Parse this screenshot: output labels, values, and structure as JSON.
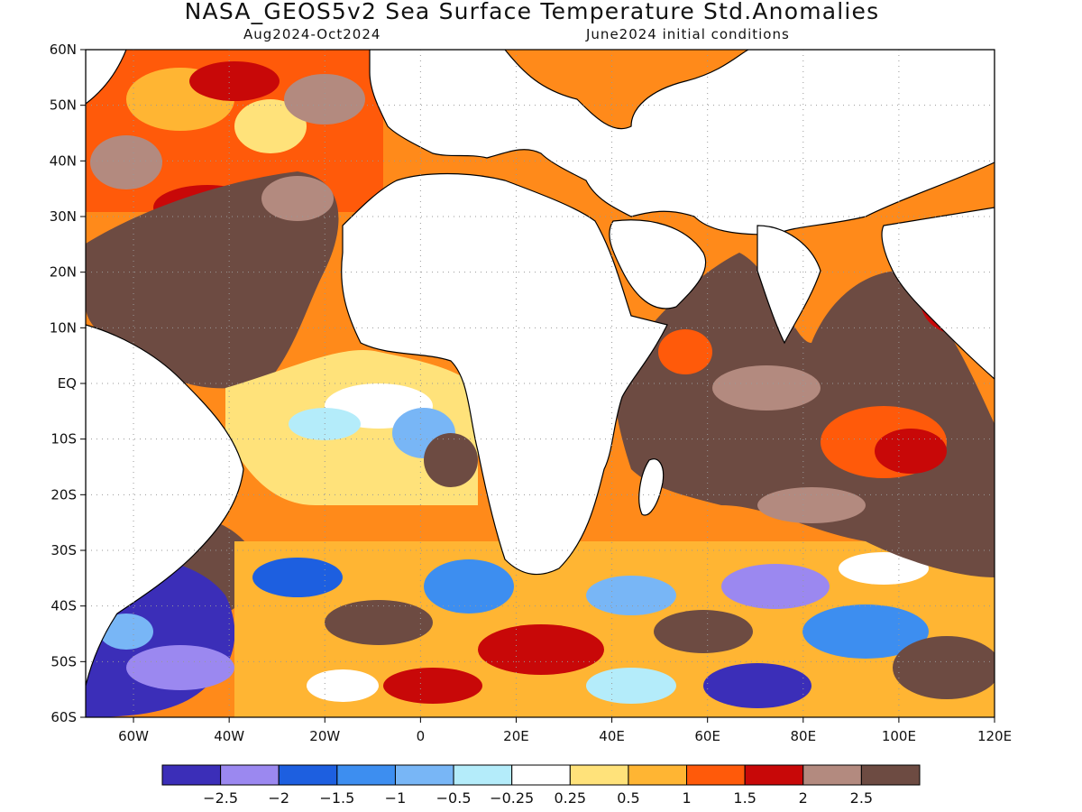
{
  "title": "NASA_GEOS5v2 Sea Surface Temperature Std.Anomalies",
  "period": "Aug2024-Oct2024",
  "init": "June2024 initial conditions",
  "lon_ticks": [
    "60W",
    "40W",
    "20W",
    "0",
    "20E",
    "40E",
    "60E",
    "80E",
    "100E",
    "120E"
  ],
  "lat_ticks": [
    "60N",
    "50N",
    "40N",
    "30N",
    "20N",
    "10N",
    "EQ",
    "10S",
    "20S",
    "30S",
    "40S",
    "50S",
    "60S"
  ],
  "colorbar": {
    "colors": [
      "#3b2eb8",
      "#9b88f0",
      "#1d5fe0",
      "#3d8ef0",
      "#78b6f6",
      "#b4ecfa",
      "#ffffff",
      "#ffe27a",
      "#ffb533",
      "#ff5a0a",
      "#c80808",
      "#b38a7f",
      "#6d4b42"
    ],
    "labels": [
      "-2.5",
      "-2",
      "-1.5",
      "-1",
      "-0.5",
      "-0.25",
      "0.25",
      "0.5",
      "1",
      "1.5",
      "2",
      "2.5"
    ]
  }
}
